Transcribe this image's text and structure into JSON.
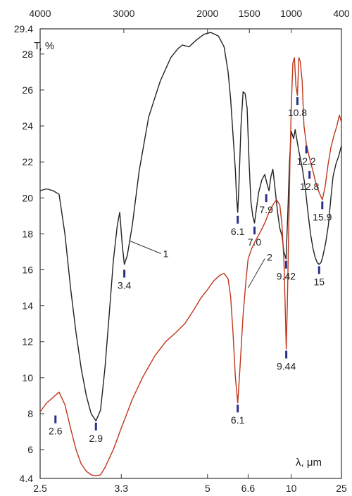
{
  "chart_data": {
    "type": "line",
    "ylabel": "T, %",
    "xlabel": "λ, μm",
    "x_scale": "reciprocal",
    "xlim": [
      2.5,
      25
    ],
    "ylim": [
      4.4,
      29.4
    ],
    "grid": false,
    "bottom_ticks": [
      {
        "value": 2.5,
        "label": "2.5"
      },
      {
        "value": 3.3,
        "label": "3.3"
      },
      {
        "value": 5,
        "label": "5"
      },
      {
        "value": 6.6,
        "label": "6.6"
      },
      {
        "value": 10,
        "label": "10"
      },
      {
        "value": 25,
        "label": "25"
      }
    ],
    "top_ticks": [
      {
        "value": 4000,
        "label": "4000"
      },
      {
        "value": 3000,
        "label": "3000"
      },
      {
        "value": 2000,
        "label": "2000"
      },
      {
        "value": 1500,
        "label": "1500"
      },
      {
        "value": 1000,
        "label": "1000"
      },
      {
        "value": 400,
        "label": "400"
      }
    ],
    "y_ticks": [
      {
        "value": 4.4,
        "label": "4.4"
      },
      {
        "value": 6,
        "label": "6"
      },
      {
        "value": 8,
        "label": "8"
      },
      {
        "value": 10,
        "label": "10"
      },
      {
        "value": 12,
        "label": "12"
      },
      {
        "value": 14,
        "label": "14"
      },
      {
        "value": 16,
        "label": "16"
      },
      {
        "value": 18,
        "label": "18"
      },
      {
        "value": 20,
        "label": "20"
      },
      {
        "value": 22,
        "label": "22"
      },
      {
        "value": 24,
        "label": "24"
      },
      {
        "value": 26,
        "label": "26"
      },
      {
        "value": 28,
        "label": "28"
      },
      {
        "value": 29.4,
        "label": "29.4"
      }
    ],
    "series": [
      {
        "color": "#222222",
        "points": [
          [
            2.5,
            20.4
          ],
          [
            2.55,
            20.5
          ],
          [
            2.6,
            20.4
          ],
          [
            2.65,
            20.2
          ],
          [
            2.7,
            18.0
          ],
          [
            2.75,
            15.0
          ],
          [
            2.8,
            12.5
          ],
          [
            2.85,
            10.5
          ],
          [
            2.9,
            9.0
          ],
          [
            2.95,
            8.0
          ],
          [
            3.0,
            7.6
          ],
          [
            3.05,
            8.2
          ],
          [
            3.1,
            10.5
          ],
          [
            3.15,
            13.5
          ],
          [
            3.2,
            16.5
          ],
          [
            3.25,
            18.5
          ],
          [
            3.28,
            19.2
          ],
          [
            3.31,
            17.5
          ],
          [
            3.34,
            16.3
          ],
          [
            3.38,
            16.8
          ],
          [
            3.45,
            18.5
          ],
          [
            3.55,
            21.5
          ],
          [
            3.7,
            24.5
          ],
          [
            3.9,
            26.5
          ],
          [
            4.1,
            27.8
          ],
          [
            4.25,
            28.3
          ],
          [
            4.35,
            28.5
          ],
          [
            4.5,
            28.4
          ],
          [
            4.7,
            28.8
          ],
          [
            4.9,
            29.1
          ],
          [
            5.1,
            29.2
          ],
          [
            5.35,
            29.0
          ],
          [
            5.55,
            28.4
          ],
          [
            5.7,
            27.0
          ],
          [
            5.8,
            25.5
          ],
          [
            5.9,
            23.5
          ],
          [
            6.0,
            21.5
          ],
          [
            6.05,
            20.0
          ],
          [
            6.1,
            19.2
          ],
          [
            6.15,
            20.5
          ],
          [
            6.25,
            24.0
          ],
          [
            6.35,
            25.9
          ],
          [
            6.45,
            25.8
          ],
          [
            6.55,
            25.0
          ],
          [
            6.65,
            22.0
          ],
          [
            6.75,
            19.8
          ],
          [
            6.85,
            19.0
          ],
          [
            6.95,
            18.6
          ],
          [
            7.05,
            19.3
          ],
          [
            7.2,
            20.3
          ],
          [
            7.4,
            21.0
          ],
          [
            7.6,
            21.3
          ],
          [
            7.75,
            20.8
          ],
          [
            7.9,
            20.4
          ],
          [
            8.05,
            21.2
          ],
          [
            8.2,
            21.6
          ],
          [
            8.4,
            20.4
          ],
          [
            8.6,
            19.2
          ],
          [
            8.8,
            18.3
          ],
          [
            9.0,
            17.9
          ],
          [
            9.2,
            17.0
          ],
          [
            9.42,
            16.6
          ],
          [
            9.6,
            19.0
          ],
          [
            9.8,
            22.0
          ],
          [
            10.0,
            23.7
          ],
          [
            10.3,
            23.3
          ],
          [
            10.5,
            23.8
          ],
          [
            10.7,
            23.3
          ],
          [
            11.0,
            22.6
          ],
          [
            11.5,
            21.7
          ],
          [
            12.0,
            20.6
          ],
          [
            12.5,
            19.2
          ],
          [
            13.0,
            18.0
          ],
          [
            13.5,
            17.2
          ],
          [
            14.0,
            16.7
          ],
          [
            14.5,
            16.4
          ],
          [
            15.0,
            16.3
          ],
          [
            15.5,
            16.4
          ],
          [
            16.0,
            16.7
          ],
          [
            17.0,
            17.5
          ],
          [
            18.0,
            18.5
          ],
          [
            19.0,
            20.0
          ],
          [
            20.0,
            21.2
          ],
          [
            21.5,
            21.9
          ],
          [
            23.0,
            22.3
          ],
          [
            25.0,
            22.9
          ]
        ]
      },
      {
        "color": "#c0361b",
        "points": [
          [
            2.5,
            8.1
          ],
          [
            2.55,
            8.6
          ],
          [
            2.6,
            8.9
          ],
          [
            2.65,
            9.2
          ],
          [
            2.7,
            8.5
          ],
          [
            2.75,
            7.2
          ],
          [
            2.8,
            6.0
          ],
          [
            2.85,
            5.2
          ],
          [
            2.9,
            4.8
          ],
          [
            2.95,
            4.6
          ],
          [
            3.0,
            4.55
          ],
          [
            3.05,
            4.6
          ],
          [
            3.1,
            5.0
          ],
          [
            3.2,
            6.0
          ],
          [
            3.3,
            7.2
          ],
          [
            3.45,
            8.8
          ],
          [
            3.6,
            10.0
          ],
          [
            3.8,
            11.2
          ],
          [
            4.0,
            12.0
          ],
          [
            4.2,
            12.5
          ],
          [
            4.4,
            13.0
          ],
          [
            4.6,
            13.7
          ],
          [
            4.8,
            14.4
          ],
          [
            5.0,
            14.9
          ],
          [
            5.2,
            15.4
          ],
          [
            5.4,
            15.7
          ],
          [
            5.55,
            15.8
          ],
          [
            5.7,
            15.5
          ],
          [
            5.8,
            14.5
          ],
          [
            5.9,
            12.5
          ],
          [
            6.0,
            10.0
          ],
          [
            6.1,
            8.6
          ],
          [
            6.2,
            10.5
          ],
          [
            6.35,
            13.5
          ],
          [
            6.5,
            15.5
          ],
          [
            6.6,
            16.6
          ],
          [
            6.8,
            17.2
          ],
          [
            7.0,
            17.6
          ],
          [
            7.3,
            18.1
          ],
          [
            7.6,
            18.6
          ],
          [
            7.9,
            19.2
          ],
          [
            8.2,
            19.6
          ],
          [
            8.5,
            19.9
          ],
          [
            8.8,
            19.6
          ],
          [
            9.0,
            18.5
          ],
          [
            9.2,
            16.5
          ],
          [
            9.35,
            13.5
          ],
          [
            9.44,
            11.6
          ],
          [
            9.55,
            14.0
          ],
          [
            9.7,
            18.0
          ],
          [
            9.85,
            22.0
          ],
          [
            10.0,
            25.0
          ],
          [
            10.2,
            27.5
          ],
          [
            10.4,
            27.8
          ],
          [
            10.6,
            26.2
          ],
          [
            10.8,
            25.7
          ],
          [
            11.0,
            27.8
          ],
          [
            11.2,
            27.6
          ],
          [
            11.5,
            26.5
          ],
          [
            11.8,
            24.0
          ],
          [
            12.2,
            23.0
          ],
          [
            12.8,
            22.2
          ],
          [
            13.5,
            21.5
          ],
          [
            14.2,
            20.8
          ],
          [
            15.0,
            20.3
          ],
          [
            15.9,
            19.9
          ],
          [
            16.8,
            20.6
          ],
          [
            17.8,
            21.8
          ],
          [
            19.0,
            22.8
          ],
          [
            20.5,
            23.5
          ],
          [
            22.0,
            24.0
          ],
          [
            23.5,
            24.6
          ],
          [
            25.0,
            24.2
          ]
        ]
      }
    ],
    "curve_labels": [
      {
        "text": "1",
        "x": 3.95,
        "y": 16.9
      },
      {
        "text": "2",
        "x": 7.75,
        "y": 16.7
      }
    ],
    "peaks": [
      {
        "label": "2.6",
        "x": 2.62,
        "y": 7.9,
        "color": "#c0361b"
      },
      {
        "label": "2.9",
        "x": 3.0,
        "y": 7.5,
        "color": "#222222"
      },
      {
        "label": "3.4",
        "x": 3.34,
        "y": 16.0,
        "color": "#222222"
      },
      {
        "label": "6.1",
        "x": 6.1,
        "y": 8.5,
        "color": "#c0361b"
      },
      {
        "label": "6.1",
        "x": 6.1,
        "y": 19.0,
        "color": "#222222"
      },
      {
        "label": "7.0",
        "x": 6.95,
        "y": 18.4,
        "color": "#222222"
      },
      {
        "label": "7.9",
        "x": 7.7,
        "y": 20.2,
        "color": "#222222"
      },
      {
        "label": "9.42",
        "x": 9.42,
        "y": 16.5,
        "color": "#222222"
      },
      {
        "label": "9.44",
        "x": 9.44,
        "y": 11.5,
        "color": "#c0361b"
      },
      {
        "label": "10.8",
        "x": 10.8,
        "y": 25.6,
        "color": "#c0361b"
      },
      {
        "label": "12.2",
        "x": 12.2,
        "y": 22.9,
        "color": "#c0361b"
      },
      {
        "label": "12.8",
        "x": 12.8,
        "y": 21.5,
        "color": "#c0361b"
      },
      {
        "label": "15.9",
        "x": 15.9,
        "y": 19.8,
        "color": "#c0361b"
      },
      {
        "label": "15",
        "x": 15.0,
        "y": 16.2,
        "color": "#222222"
      }
    ]
  }
}
